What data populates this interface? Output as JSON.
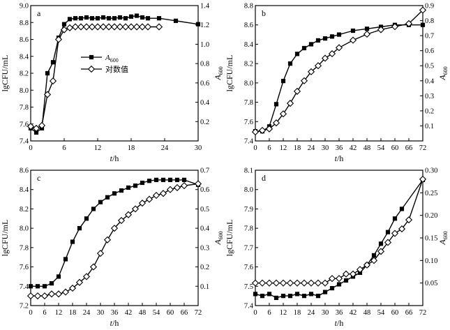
{
  "figure": {
    "background": "#ffffff",
    "line_color": "#000000",
    "marker_fill_square": "#000000",
    "marker_fill_diamond": "#ffffff"
  },
  "chart_data": [
    {
      "id": "a",
      "type": "line",
      "panel_label": "a",
      "xlabel": "t/h",
      "ylabel_left": "lgCFU/mL",
      "ylabel_right": "A600",
      "xlim": [
        0,
        30
      ],
      "xticks": [
        0,
        6,
        12,
        18,
        24,
        30
      ],
      "ylim_left": [
        7.4,
        9.0
      ],
      "yticks_left": [
        7.4,
        7.6,
        7.8,
        8.0,
        8.2,
        8.4,
        8.6,
        8.8,
        9.0
      ],
      "tick_decimals_left": 1,
      "ylim_right": [
        0,
        1.4
      ],
      "yticks_right": [
        0.2,
        0.4,
        0.6,
        0.8,
        1.0,
        1.2,
        1.4
      ],
      "tick_decimals_right": 1,
      "legend": [
        {
          "marker": "square",
          "label": "A600"
        },
        {
          "marker": "diamond",
          "label": "对数值"
        }
      ],
      "series": [
        {
          "marker": "square",
          "axis": "left",
          "x": [
            0,
            1,
            2,
            3,
            4,
            5,
            6,
            7,
            8,
            9,
            10,
            11,
            12,
            13,
            14,
            15,
            16,
            17,
            18,
            19,
            20,
            21,
            23,
            26,
            30
          ],
          "y": [
            7.55,
            7.5,
            7.55,
            8.2,
            8.33,
            8.62,
            8.78,
            8.84,
            8.85,
            8.85,
            8.86,
            8.85,
            8.85,
            8.86,
            8.85,
            8.85,
            8.86,
            8.85,
            8.87,
            8.88,
            8.86,
            8.85,
            8.85,
            8.82,
            8.78
          ]
        },
        {
          "marker": "diamond",
          "axis": "right",
          "x": [
            0,
            1,
            2,
            3,
            4,
            5,
            6,
            7,
            8,
            9,
            10,
            11,
            12,
            13,
            14,
            15,
            16,
            17,
            18,
            19,
            20,
            21,
            23
          ],
          "y": [
            0.15,
            0.13,
            0.16,
            0.48,
            0.62,
            1.05,
            1.15,
            1.17,
            1.18,
            1.18,
            1.18,
            1.18,
            1.18,
            1.18,
            1.18,
            1.18,
            1.18,
            1.18,
            1.18,
            1.18,
            1.18,
            1.18,
            1.18
          ]
        }
      ]
    },
    {
      "id": "b",
      "type": "line",
      "panel_label": "b",
      "xlabel": "t/h",
      "ylabel_left": "lgCFU/mL",
      "ylabel_right": "A600",
      "xlim": [
        0,
        72
      ],
      "xticks": [
        0,
        6,
        12,
        18,
        24,
        30,
        36,
        42,
        48,
        54,
        60,
        66,
        72
      ],
      "ylim_left": [
        7.4,
        8.8
      ],
      "yticks_left": [
        7.4,
        7.6,
        7.8,
        8.0,
        8.2,
        8.4,
        8.6,
        8.8
      ],
      "tick_decimals_left": 1,
      "ylim_right": [
        0,
        0.9
      ],
      "yticks_right": [
        0.1,
        0.2,
        0.3,
        0.4,
        0.5,
        0.6,
        0.7,
        0.8,
        0.9
      ],
      "tick_decimals_right": 1,
      "legend": null,
      "series": [
        {
          "marker": "square",
          "axis": "left",
          "x": [
            0,
            3,
            6,
            9,
            12,
            15,
            18,
            21,
            24,
            27,
            30,
            33,
            36,
            42,
            48,
            54,
            60,
            66,
            72
          ],
          "y": [
            7.5,
            7.5,
            7.55,
            7.78,
            8.02,
            8.2,
            8.3,
            8.36,
            8.4,
            8.44,
            8.46,
            8.48,
            8.5,
            8.54,
            8.56,
            8.58,
            8.6,
            8.6,
            8.6
          ]
        },
        {
          "marker": "diamond",
          "axis": "right",
          "x": [
            0,
            3,
            6,
            9,
            12,
            15,
            18,
            21,
            24,
            27,
            30,
            33,
            36,
            42,
            48,
            54,
            60,
            66,
            72
          ],
          "y": [
            0.06,
            0.07,
            0.08,
            0.12,
            0.18,
            0.25,
            0.33,
            0.4,
            0.46,
            0.5,
            0.55,
            0.58,
            0.62,
            0.67,
            0.71,
            0.74,
            0.76,
            0.78,
            0.87
          ]
        }
      ]
    },
    {
      "id": "c",
      "type": "line",
      "panel_label": "c",
      "xlabel": "t/h",
      "ylabel_left": "lgCFU/mL",
      "ylabel_right": "A600",
      "xlim": [
        0,
        72
      ],
      "xticks": [
        0,
        6,
        12,
        18,
        24,
        30,
        36,
        42,
        48,
        54,
        60,
        66,
        72
      ],
      "ylim_left": [
        7.2,
        8.6
      ],
      "yticks_left": [
        7.2,
        7.4,
        7.6,
        7.8,
        8.0,
        8.2,
        8.4,
        8.6
      ],
      "tick_decimals_left": 1,
      "ylim_right": [
        0,
        0.7
      ],
      "yticks_right": [
        0.1,
        0.2,
        0.3,
        0.4,
        0.5,
        0.6,
        0.7
      ],
      "tick_decimals_right": 1,
      "legend": null,
      "series": [
        {
          "marker": "square",
          "axis": "left",
          "x": [
            0,
            3,
            6,
            9,
            12,
            15,
            18,
            21,
            24,
            27,
            30,
            33,
            36,
            39,
            42,
            45,
            48,
            51,
            54,
            57,
            60,
            63,
            66,
            72
          ],
          "y": [
            7.4,
            7.4,
            7.4,
            7.43,
            7.5,
            7.68,
            7.86,
            8.0,
            8.1,
            8.2,
            8.27,
            8.32,
            8.36,
            8.39,
            8.42,
            8.44,
            8.47,
            8.49,
            8.5,
            8.5,
            8.5,
            8.5,
            8.5,
            8.45
          ]
        },
        {
          "marker": "diamond",
          "axis": "right",
          "x": [
            0,
            3,
            6,
            9,
            12,
            15,
            18,
            21,
            24,
            27,
            30,
            33,
            36,
            39,
            42,
            45,
            48,
            51,
            54,
            57,
            60,
            63,
            66,
            72
          ],
          "y": [
            0.05,
            0.05,
            0.05,
            0.06,
            0.06,
            0.07,
            0.09,
            0.12,
            0.15,
            0.2,
            0.27,
            0.34,
            0.4,
            0.44,
            0.47,
            0.5,
            0.53,
            0.55,
            0.57,
            0.58,
            0.6,
            0.61,
            0.62,
            0.63
          ]
        }
      ]
    },
    {
      "id": "d",
      "type": "line",
      "panel_label": "d",
      "xlabel": "t/h",
      "ylabel_left": "lgCFU/mL",
      "ylabel_right": "A600",
      "xlim": [
        0,
        72
      ],
      "xticks": [
        0,
        6,
        12,
        18,
        24,
        30,
        36,
        42,
        48,
        54,
        60,
        66,
        72
      ],
      "ylim_left": [
        7.4,
        8.1
      ],
      "yticks_left": [
        7.4,
        7.5,
        7.6,
        7.7,
        7.8,
        7.9,
        8.0,
        8.1
      ],
      "tick_decimals_left": 1,
      "ylim_right": [
        0,
        0.3
      ],
      "yticks_right": [
        0.05,
        0.1,
        0.15,
        0.2,
        0.25,
        0.3
      ],
      "tick_decimals_right": 2,
      "legend": null,
      "series": [
        {
          "marker": "square",
          "axis": "left",
          "x": [
            0,
            3,
            6,
            9,
            12,
            15,
            18,
            21,
            24,
            27,
            30,
            33,
            36,
            39,
            42,
            45,
            48,
            51,
            54,
            57,
            60,
            63,
            72
          ],
          "y": [
            7.46,
            7.45,
            7.46,
            7.44,
            7.45,
            7.45,
            7.46,
            7.45,
            7.46,
            7.45,
            7.47,
            7.49,
            7.51,
            7.53,
            7.55,
            7.57,
            7.61,
            7.66,
            7.72,
            7.78,
            7.85,
            7.9,
            8.05
          ]
        },
        {
          "marker": "diamond",
          "axis": "right",
          "x": [
            0,
            3,
            6,
            9,
            12,
            15,
            18,
            21,
            24,
            27,
            30,
            33,
            36,
            39,
            42,
            45,
            48,
            51,
            54,
            57,
            60,
            63,
            66,
            72
          ],
          "y": [
            0.05,
            0.05,
            0.05,
            0.05,
            0.05,
            0.05,
            0.05,
            0.05,
            0.05,
            0.05,
            0.05,
            0.06,
            0.06,
            0.07,
            0.07,
            0.08,
            0.09,
            0.1,
            0.12,
            0.14,
            0.16,
            0.17,
            0.19,
            0.28
          ]
        }
      ]
    }
  ]
}
